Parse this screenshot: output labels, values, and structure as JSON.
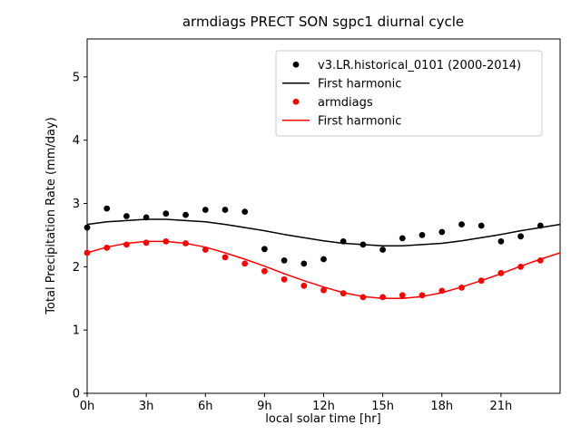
{
  "figure": {
    "title": "armdiags PRECT SON sgpc1 diurnal cycle",
    "xlabel": "local solar time [hr]",
    "ylabel": "Total Precipitation Rate (mm/day)"
  },
  "chart_data": {
    "type": "line",
    "title": "armdiags PRECT SON sgpc1 diurnal cycle",
    "xlabel": "local solar time [hr]",
    "ylabel": "Total Precipitation Rate (mm/day)",
    "xlim": [
      0,
      24
    ],
    "ylim": [
      0,
      5.6
    ],
    "grid": false,
    "legend_position": "upper right",
    "xticks": {
      "values": [
        0,
        3,
        6,
        9,
        12,
        15,
        18,
        21
      ],
      "labels": [
        "0h",
        "3h",
        "6h",
        "9h",
        "12h",
        "15h",
        "18h",
        "21h"
      ]
    },
    "yticks": {
      "values": [
        0,
        1,
        2,
        3,
        4,
        5
      ],
      "labels": [
        "0",
        "1",
        "2",
        "3",
        "4",
        "5"
      ]
    },
    "series": [
      {
        "name": "v3.LR.historical_0101 (2000-2014)",
        "type": "scatter",
        "color": "#000000",
        "x": [
          0,
          1,
          2,
          3,
          4,
          5,
          6,
          7,
          8,
          9,
          10,
          11,
          12,
          13,
          14,
          15,
          16,
          17,
          18,
          19,
          20,
          21,
          22,
          23
        ],
        "values": [
          2.62,
          2.92,
          2.8,
          2.78,
          2.84,
          2.82,
          2.9,
          2.9,
          2.87,
          2.28,
          2.1,
          2.05,
          2.12,
          2.4,
          2.35,
          2.27,
          2.45,
          2.5,
          2.55,
          2.67,
          2.65,
          2.4,
          2.48,
          2.65
        ]
      },
      {
        "name": "First harmonic",
        "type": "line",
        "color": "#000000",
        "x": [
          0,
          1,
          2,
          3,
          4,
          5,
          6,
          7,
          8,
          9,
          10,
          11,
          12,
          13,
          14,
          15,
          16,
          17,
          18,
          19,
          20,
          21,
          22,
          23,
          24
        ],
        "values": [
          2.67,
          2.71,
          2.73,
          2.75,
          2.75,
          2.73,
          2.71,
          2.67,
          2.62,
          2.57,
          2.51,
          2.46,
          2.41,
          2.37,
          2.35,
          2.33,
          2.33,
          2.35,
          2.37,
          2.41,
          2.46,
          2.51,
          2.57,
          2.62,
          2.67
        ]
      },
      {
        "name": "armdiags",
        "type": "scatter",
        "color": "#ff0000",
        "x": [
          0,
          1,
          2,
          3,
          4,
          5,
          6,
          7,
          8,
          9,
          10,
          11,
          12,
          13,
          14,
          15,
          16,
          17,
          18,
          19,
          20,
          21,
          22,
          23
        ],
        "values": [
          2.22,
          2.3,
          2.35,
          2.38,
          2.4,
          2.37,
          2.27,
          2.15,
          2.05,
          1.93,
          1.8,
          1.7,
          1.63,
          1.58,
          1.52,
          1.52,
          1.55,
          1.55,
          1.62,
          1.67,
          1.78,
          1.9,
          2.0,
          2.1
        ]
      },
      {
        "name": "First harmonic",
        "type": "line",
        "color": "#ff0000",
        "x": [
          0,
          1,
          2,
          3,
          4,
          5,
          6,
          7,
          8,
          9,
          10,
          11,
          12,
          13,
          14,
          15,
          16,
          17,
          18,
          19,
          20,
          21,
          22,
          23,
          24
        ],
        "values": [
          2.22,
          2.31,
          2.37,
          2.4,
          2.4,
          2.37,
          2.31,
          2.22,
          2.12,
          2.01,
          1.89,
          1.78,
          1.68,
          1.59,
          1.53,
          1.5,
          1.5,
          1.53,
          1.59,
          1.68,
          1.78,
          1.89,
          2.01,
          2.12,
          2.22
        ]
      }
    ],
    "style": {
      "axis_color": "#000000",
      "legend_border_color": "#cccccc",
      "legend_background": "#ffffff",
      "marker_radius": 3.4,
      "line_width": 1.5
    }
  }
}
